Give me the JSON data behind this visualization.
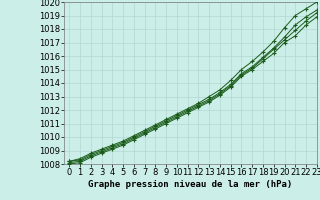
{
  "title": "Graphe pression niveau de la mer (hPa)",
  "background_color": "#cceee8",
  "grid_color": "#b0d8d0",
  "line_color": "#1a5c1a",
  "marker_color": "#1a5c1a",
  "xlim": [
    -0.5,
    23
  ],
  "ylim": [
    1008,
    1020
  ],
  "xlabel_fontsize": 6,
  "ylabel_fontsize": 6,
  "title_fontsize": 6.5,
  "series": [
    [
      1008.2,
      1008.4,
      1008.8,
      1009.1,
      1009.4,
      1009.7,
      1010.1,
      1010.5,
      1010.9,
      1011.3,
      1011.7,
      1012.1,
      1012.5,
      1013.0,
      1013.5,
      1014.2,
      1015.0,
      1015.6,
      1016.3,
      1017.1,
      1018.1,
      1019.0,
      1019.5,
      1020.0
    ],
    [
      1008.2,
      1008.3,
      1008.7,
      1009.0,
      1009.3,
      1009.6,
      1010.0,
      1010.4,
      1010.8,
      1011.2,
      1011.6,
      1012.0,
      1012.4,
      1012.8,
      1013.3,
      1013.9,
      1014.7,
      1015.2,
      1015.9,
      1016.6,
      1017.4,
      1018.3,
      1018.9,
      1019.4
    ],
    [
      1008.1,
      1008.2,
      1008.6,
      1008.9,
      1009.2,
      1009.5,
      1009.9,
      1010.3,
      1010.7,
      1011.1,
      1011.5,
      1011.9,
      1012.3,
      1012.7,
      1013.2,
      1013.8,
      1014.6,
      1015.1,
      1015.8,
      1016.5,
      1017.2,
      1017.9,
      1018.6,
      1019.2
    ],
    [
      1008.0,
      1008.1,
      1008.5,
      1008.8,
      1009.1,
      1009.4,
      1009.8,
      1010.2,
      1010.6,
      1011.0,
      1011.4,
      1011.8,
      1012.2,
      1012.6,
      1013.1,
      1013.7,
      1014.5,
      1015.0,
      1015.6,
      1016.2,
      1017.0,
      1017.5,
      1018.3,
      1018.9
    ]
  ]
}
